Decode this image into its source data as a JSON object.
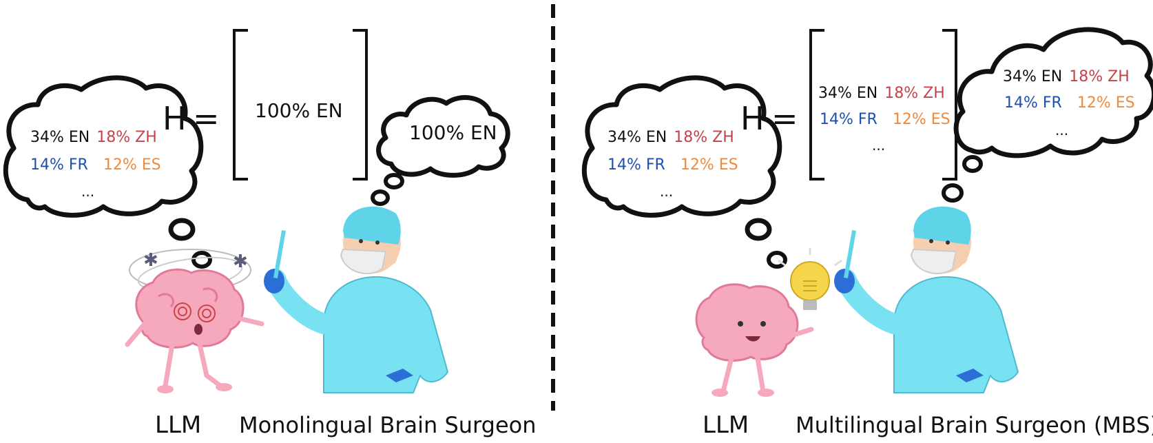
{
  "colors": {
    "black": "#111111",
    "en": "#111111",
    "zh": "#c4424a",
    "fr": "#1f4fb0",
    "es": "#ef8a3c",
    "surgeon_gown": "#78e2f2",
    "surgeon_cap": "#5fd3e8",
    "glove": "#2b6fd6",
    "skin": "#f6cfb0",
    "brain": "#f6a8bd",
    "brain_dark": "#e07a98",
    "bulb": "#f7d54a"
  },
  "left": {
    "llm_thought": {
      "row1": [
        {
          "text": "34% EN",
          "lang": "en"
        },
        {
          "text": "18% ZH",
          "lang": "zh"
        }
      ],
      "row2": [
        {
          "text": "14% FR",
          "lang": "fr"
        },
        {
          "text": "12% ES",
          "lang": "es"
        }
      ],
      "ellipsis": "..."
    },
    "h_label": "H",
    "equals": "=",
    "matrix": {
      "row1": "100% EN"
    },
    "surgeon_thought": {
      "text": "100% EN"
    },
    "llm_label": "LLM",
    "surgeon_label": "Monolingual Brain Surgeon"
  },
  "right": {
    "llm_thought": {
      "row1": [
        {
          "text": "34% EN",
          "lang": "en"
        },
        {
          "text": "18% ZH",
          "lang": "zh"
        }
      ],
      "row2": [
        {
          "text": "14% FR",
          "lang": "fr"
        },
        {
          "text": "12% ES",
          "lang": "es"
        }
      ],
      "ellipsis": "..."
    },
    "h_label": "H",
    "equals": "=",
    "matrix": {
      "row1": [
        {
          "text": "34% EN",
          "lang": "en"
        },
        {
          "text": "18% ZH",
          "lang": "zh"
        }
      ],
      "row2": [
        {
          "text": "14% FR",
          "lang": "fr"
        },
        {
          "text": "12% ES",
          "lang": "es"
        }
      ],
      "ellipsis": "..."
    },
    "surgeon_thought": {
      "row1": [
        {
          "text": "34% EN",
          "lang": "en"
        },
        {
          "text": "18% ZH",
          "lang": "zh"
        }
      ],
      "row2": [
        {
          "text": "14% FR",
          "lang": "fr"
        },
        {
          "text": "12% ES",
          "lang": "es"
        }
      ],
      "ellipsis": "..."
    },
    "llm_label": "LLM",
    "surgeon_label": "Multilingual Brain Surgeon (MBS)"
  }
}
